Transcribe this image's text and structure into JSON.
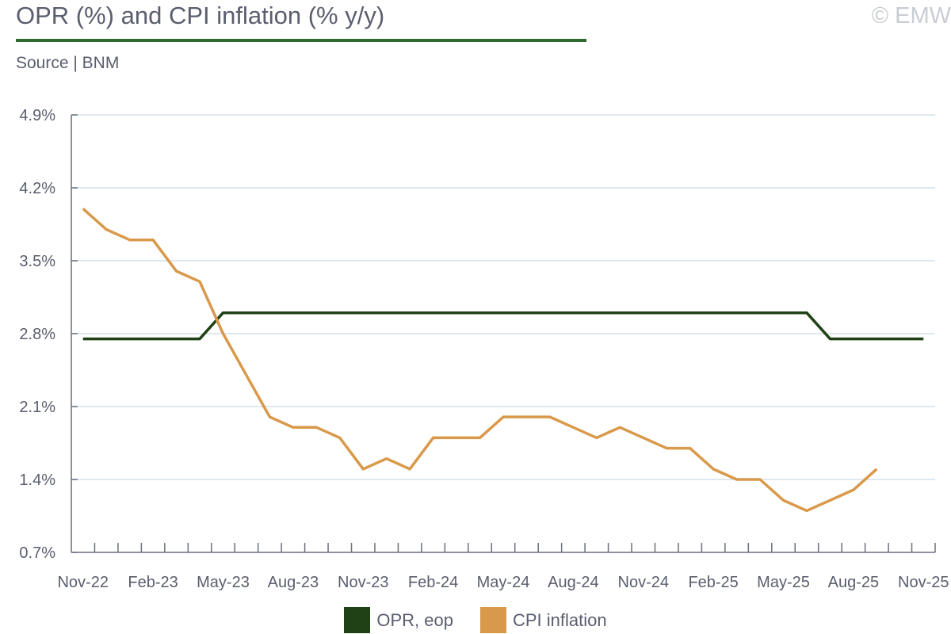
{
  "header": {
    "title": "OPR (%) and CPI inflation (% y/y)",
    "source": "Source | BNM",
    "copyright": "© EMW"
  },
  "colors": {
    "opr": "#1e4215",
    "cpi": "#d9994a",
    "grid": "#d6e0ea",
    "axis": "#6b6f7d",
    "rule": "#2e6b2e"
  },
  "chart_data": {
    "type": "line",
    "title": "OPR (%) and CPI inflation (% y/y)",
    "xlabel": "",
    "ylabel": "",
    "ylim": [
      0.7,
      4.9
    ],
    "yticks": [
      "0.7%",
      "1.4%",
      "2.1%",
      "2.8%",
      "3.5%",
      "4.2%",
      "4.9%"
    ],
    "ytick_values": [
      0.7,
      1.4,
      2.1,
      2.8,
      3.5,
      4.2,
      4.9
    ],
    "x": [
      "Nov-22",
      "Dec-22",
      "Jan-23",
      "Feb-23",
      "Mar-23",
      "Apr-23",
      "May-23",
      "Jun-23",
      "Jul-23",
      "Aug-23",
      "Sep-23",
      "Oct-23",
      "Nov-23",
      "Dec-23",
      "Jan-24",
      "Feb-24",
      "Mar-24",
      "Apr-24",
      "May-24",
      "Jun-24",
      "Jul-24",
      "Aug-24",
      "Sep-24",
      "Oct-24",
      "Nov-24",
      "Dec-24",
      "Jan-25",
      "Feb-25",
      "Mar-25",
      "Apr-25",
      "May-25",
      "Jun-25",
      "Jul-25",
      "Aug-25",
      "Sep-25",
      "Oct-25",
      "Nov-25"
    ],
    "xticks": [
      "Nov-22",
      "Feb-23",
      "May-23",
      "Aug-23",
      "Nov-23",
      "Feb-24",
      "May-24",
      "Aug-24",
      "Nov-24",
      "Feb-25",
      "May-25",
      "Aug-25",
      "Nov-25"
    ],
    "grid": true,
    "legend": "bottom-center",
    "series": [
      {
        "name": "OPR, eop",
        "values": [
          2.75,
          2.75,
          2.75,
          2.75,
          2.75,
          2.75,
          3.0,
          3.0,
          3.0,
          3.0,
          3.0,
          3.0,
          3.0,
          3.0,
          3.0,
          3.0,
          3.0,
          3.0,
          3.0,
          3.0,
          3.0,
          3.0,
          3.0,
          3.0,
          3.0,
          3.0,
          3.0,
          3.0,
          3.0,
          3.0,
          3.0,
          3.0,
          2.75,
          2.75,
          2.75,
          2.75,
          2.75
        ]
      },
      {
        "name": "CPI inflation",
        "values": [
          4.0,
          3.8,
          3.7,
          3.7,
          3.4,
          3.3,
          2.8,
          2.4,
          2.0,
          1.9,
          1.9,
          1.8,
          1.5,
          1.6,
          1.5,
          1.8,
          1.8,
          1.8,
          2.0,
          2.0,
          2.0,
          1.9,
          1.8,
          1.9,
          1.8,
          1.7,
          1.7,
          1.5,
          1.4,
          1.4,
          1.2,
          1.1,
          1.2,
          1.3,
          1.5,
          null,
          null
        ]
      }
    ]
  }
}
